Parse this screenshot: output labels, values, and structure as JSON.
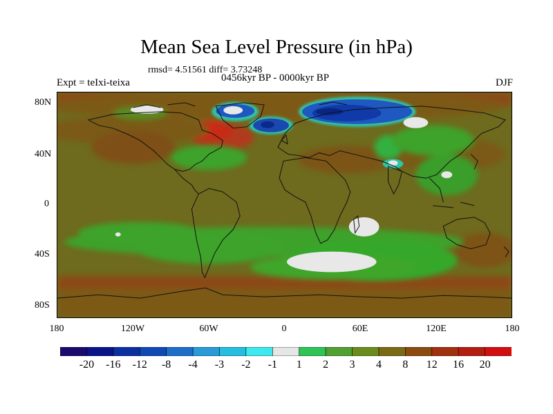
{
  "title": "Mean Sea Level Pressure (in hPa)",
  "rmsd_text": "rmsd= 4.51561 diff= 3.73248",
  "subtitle": "0456kyr BP - 0000kyr BP",
  "left_label": "Expt = teIxi-teixa",
  "right_label": "DJF",
  "lat_ticks": [
    "80N",
    "40N",
    "0",
    "40S",
    "80S"
  ],
  "lon_ticks": [
    "180",
    "120W",
    "60W",
    "0",
    "60E",
    "120E",
    "180"
  ],
  "colorbar": {
    "labels": [
      "-20",
      "-16",
      "-12",
      "-8",
      "-4",
      "-3",
      "-2",
      "-1",
      "1",
      "2",
      "3",
      "4",
      "8",
      "12",
      "16",
      "20"
    ],
    "colors": [
      "#1a0a6e",
      "#0a1488",
      "#0a2fa0",
      "#0f4ab4",
      "#1e6ec8",
      "#2a9ad8",
      "#25bde0",
      "#3ee8ee",
      "#e6e6e6",
      "#2ec456",
      "#50a032",
      "#6a8c1c",
      "#7a6a14",
      "#8c4a10",
      "#a03010",
      "#b41e10",
      "#d20e0e"
    ]
  },
  "colors": {
    "background_field": "#6e6a1e",
    "green_field": "#3ea32a",
    "positive_anomaly": "#b8341a",
    "negative_anomaly": "#1e58c0"
  }
}
